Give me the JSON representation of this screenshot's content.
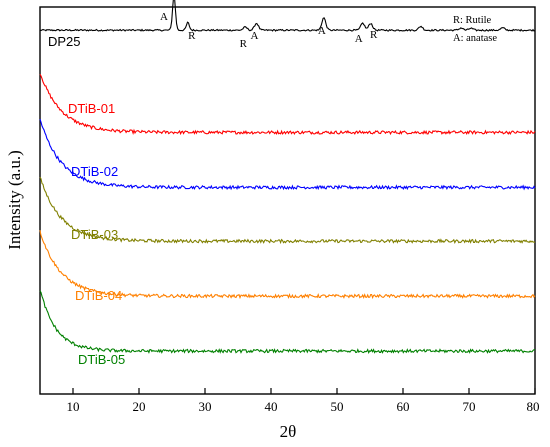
{
  "chart_data": {
    "type": "line",
    "xlabel": "2θ",
    "ylabel": "Intensity (a.u.)",
    "xlim": [
      5,
      80
    ],
    "x_ticks": [
      10,
      20,
      30,
      40,
      50,
      60,
      70,
      80
    ],
    "y_ticks_shown": false,
    "grid": false,
    "legend": [
      "R: Rutile",
      "A: anatase"
    ],
    "legend_position": "top-right",
    "peak_labels": [
      {
        "x": 25.3,
        "label": "A"
      },
      {
        "x": 27.4,
        "label": "R"
      },
      {
        "x": 36.1,
        "label": "R"
      },
      {
        "x": 37.8,
        "label": "A"
      },
      {
        "x": 48.0,
        "label": "A"
      },
      {
        "x": 53.9,
        "label": "A"
      },
      {
        "x": 55.1,
        "label": "R"
      }
    ],
    "series": [
      {
        "name": "DP25",
        "color": "#000000",
        "baseline": 0.94,
        "peaks": [
          [
            25.3,
            0.09
          ],
          [
            27.4,
            0.02
          ],
          [
            36.1,
            0.008
          ],
          [
            37.8,
            0.018
          ],
          [
            48.0,
            0.032
          ],
          [
            53.9,
            0.018
          ],
          [
            55.1,
            0.018
          ],
          [
            62.7,
            0.01
          ],
          [
            68.8,
            0.006
          ],
          [
            70.3,
            0.005
          ],
          [
            75.1,
            0.006
          ]
        ]
      },
      {
        "name": "DTiB-01",
        "color": "#ff0000",
        "start": 0.83,
        "end": 0.676,
        "decay": 3.2
      },
      {
        "name": "DTiB-02",
        "color": "#0000ff",
        "start": 0.71,
        "end": 0.534,
        "decay": 3.2
      },
      {
        "name": "DTiB-03",
        "color": "#808000",
        "start": 0.56,
        "end": 0.395,
        "decay": 3.2
      },
      {
        "name": "DTiB-04",
        "color": "#ff8000",
        "start": 0.42,
        "end": 0.253,
        "decay": 3.2
      },
      {
        "name": "DTiB-05",
        "color": "#008000",
        "start": 0.27,
        "end": 0.111,
        "decay": 2.4
      }
    ]
  }
}
